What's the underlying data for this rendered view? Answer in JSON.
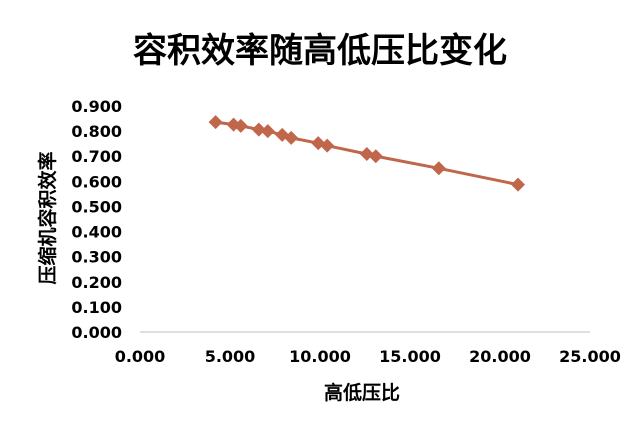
{
  "chart_data": {
    "type": "scatter",
    "title": "容积效率随高低压比变化",
    "xlabel": "高低压比",
    "ylabel": "压缩机容积效率",
    "xlim": [
      0,
      25
    ],
    "ylim": [
      0,
      0.9
    ],
    "xticks": [
      0,
      5,
      10,
      15,
      20,
      25
    ],
    "yticks": [
      0,
      0.1,
      0.2,
      0.3,
      0.4,
      0.5,
      0.6,
      0.7,
      0.8,
      0.9
    ],
    "xtick_labels": [
      "0.000",
      "5.000",
      "10.000",
      "15.000",
      "20.000",
      "25.000"
    ],
    "ytick_labels": [
      "0.000",
      "0.100",
      "0.200",
      "0.300",
      "0.400",
      "0.500",
      "0.600",
      "0.700",
      "0.800",
      "0.900"
    ],
    "grid": false,
    "legend": "none",
    "series": [
      {
        "color": "#c0664a",
        "marker": "diamond",
        "line": true,
        "x": [
          4.2,
          5.2,
          5.6,
          6.6,
          7.1,
          7.9,
          8.4,
          9.9,
          10.4,
          12.6,
          13.1,
          16.6,
          21.0
        ],
        "y": [
          0.836,
          0.826,
          0.821,
          0.806,
          0.8,
          0.785,
          0.773,
          0.752,
          0.742,
          0.709,
          0.7,
          0.652,
          0.587
        ]
      }
    ]
  }
}
